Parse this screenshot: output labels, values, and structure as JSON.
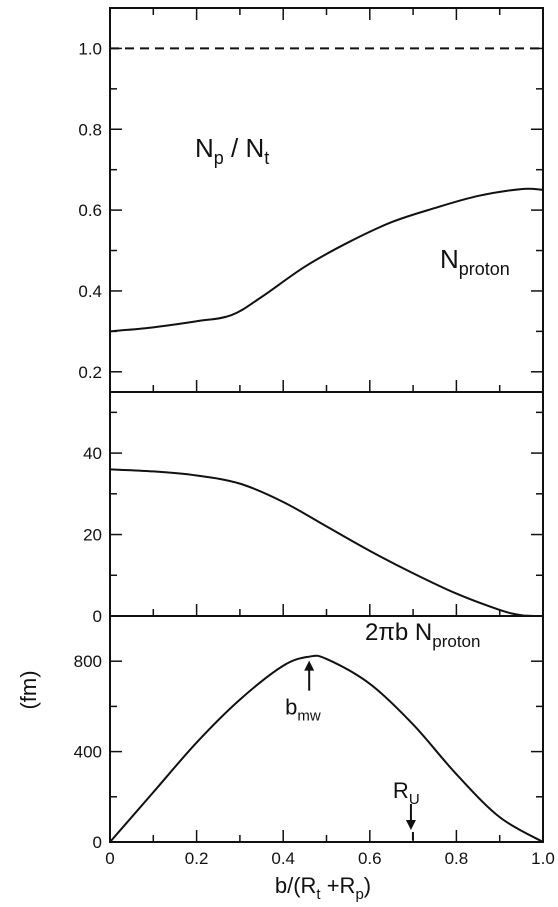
{
  "chart_data": [
    {
      "type": "line",
      "panel": "top",
      "annotation": {
        "main": "N",
        "sub": "p",
        "sep": " / ",
        "main2": "N",
        "sub2": "t"
      },
      "xlim": [
        0,
        1
      ],
      "ylim": [
        0.15,
        1.1
      ],
      "yticks": [
        0.2,
        0.4,
        0.6,
        0.8,
        1.0
      ],
      "ytick_labels": [
        "0.2",
        "0.4",
        "0.6",
        "0.8",
        "1.0"
      ],
      "reference_line": {
        "y": 1.0,
        "style": "dashed"
      },
      "series": [
        {
          "x": [
            0,
            0.1,
            0.2,
            0.28,
            0.35,
            0.45,
            0.55,
            0.65,
            0.75,
            0.85,
            0.95,
            1.0
          ],
          "values": [
            0.3,
            0.31,
            0.325,
            0.34,
            0.385,
            0.46,
            0.52,
            0.57,
            0.605,
            0.635,
            0.652,
            0.65
          ]
        }
      ]
    },
    {
      "type": "line",
      "panel": "middle",
      "annotation": {
        "main": "N",
        "sub": "proton"
      },
      "xlim": [
        0,
        1
      ],
      "ylim": [
        0,
        55
      ],
      "yticks": [
        0,
        20,
        40
      ],
      "ytick_labels": [
        "0",
        "20",
        "40"
      ],
      "series": [
        {
          "x": [
            0,
            0.1,
            0.2,
            0.3,
            0.4,
            0.5,
            0.6,
            0.7,
            0.8,
            0.9,
            0.95,
            1.0
          ],
          "values": [
            36,
            35.5,
            34.5,
            32.5,
            28,
            22,
            16,
            10.5,
            5.5,
            1.5,
            0.2,
            0
          ]
        }
      ]
    },
    {
      "type": "line",
      "panel": "bottom",
      "annotation": {
        "main": "2πb N",
        "sub": "proton"
      },
      "ylabel": "(fm)",
      "xlabel": {
        "pre": "b/(R",
        "sub1": "t",
        "mid": " +R",
        "sub2": "p",
        "post": ")"
      },
      "xlim": [
        0,
        1
      ],
      "ylim": [
        0,
        1000
      ],
      "yticks": [
        0,
        400,
        800
      ],
      "ytick_labels": [
        "0",
        "400",
        "800"
      ],
      "xticks": [
        0,
        0.2,
        0.4,
        0.6,
        0.8,
        1.0
      ],
      "xtick_labels": [
        "0",
        "0.2",
        "0.4",
        "0.6",
        "0.8",
        "1.0"
      ],
      "markers": [
        {
          "label_main": "b",
          "label_sub": "mw",
          "x": 0.46,
          "y": 820,
          "direction": "up"
        },
        {
          "label_main": "R",
          "label_sub": "U",
          "x": 0.695,
          "y": 0,
          "direction": "down"
        }
      ],
      "series": [
        {
          "x": [
            0,
            0.1,
            0.2,
            0.3,
            0.4,
            0.46,
            0.5,
            0.6,
            0.7,
            0.8,
            0.9,
            1.0
          ],
          "values": [
            0,
            220,
            440,
            630,
            780,
            820,
            810,
            700,
            520,
            300,
            110,
            0
          ]
        }
      ]
    }
  ]
}
